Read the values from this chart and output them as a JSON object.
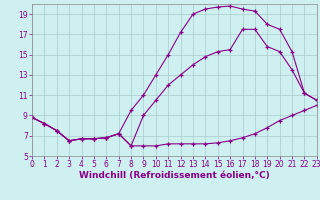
{
  "xlabel": "Windchill (Refroidissement éolien,°C)",
  "background_color": "#cff0f0",
  "grid_color": "#aacccc",
  "line_color": "#880088",
  "xmin": 0,
  "xmax": 23,
  "ymin": 5,
  "ymax": 20,
  "yticks": [
    5,
    7,
    9,
    11,
    13,
    15,
    17,
    19
  ],
  "xticks": [
    0,
    1,
    2,
    3,
    4,
    5,
    6,
    7,
    8,
    9,
    10,
    11,
    12,
    13,
    14,
    15,
    16,
    17,
    18,
    19,
    20,
    21,
    22,
    23
  ],
  "line1_x": [
    0,
    1,
    2,
    3,
    4,
    5,
    6,
    7,
    8,
    9,
    10,
    11,
    12,
    13,
    14,
    15,
    16,
    17,
    18,
    19,
    20,
    21,
    22,
    23
  ],
  "line1_y": [
    8.8,
    8.2,
    7.5,
    6.5,
    6.7,
    6.7,
    6.8,
    7.2,
    6.0,
    6.0,
    6.0,
    6.2,
    6.2,
    6.2,
    6.2,
    6.3,
    6.5,
    6.8,
    7.2,
    7.8,
    8.5,
    9.0,
    9.5,
    10.0
  ],
  "line2_x": [
    0,
    1,
    2,
    3,
    4,
    5,
    6,
    7,
    8,
    9,
    10,
    11,
    12,
    13,
    14,
    15,
    16,
    17,
    18,
    19,
    20,
    21,
    22,
    23
  ],
  "line2_y": [
    8.8,
    8.2,
    7.5,
    6.5,
    6.7,
    6.7,
    6.8,
    7.2,
    9.5,
    11.0,
    13.0,
    15.0,
    17.2,
    19.0,
    19.5,
    19.7,
    19.8,
    19.5,
    19.3,
    18.0,
    17.5,
    15.3,
    11.2,
    10.5
  ],
  "line3_x": [
    0,
    1,
    2,
    3,
    4,
    5,
    6,
    7,
    8,
    9,
    10,
    11,
    12,
    13,
    14,
    15,
    16,
    17,
    18,
    19,
    20,
    21,
    22,
    23
  ],
  "line3_y": [
    8.8,
    8.2,
    7.5,
    6.5,
    6.7,
    6.7,
    6.8,
    7.2,
    6.0,
    9.0,
    10.5,
    12.0,
    13.0,
    14.0,
    14.8,
    15.3,
    15.5,
    17.5,
    17.5,
    15.8,
    15.3,
    13.5,
    11.2,
    10.5
  ],
  "xlabel_fontsize": 6.5,
  "tick_fontsize": 5.5
}
